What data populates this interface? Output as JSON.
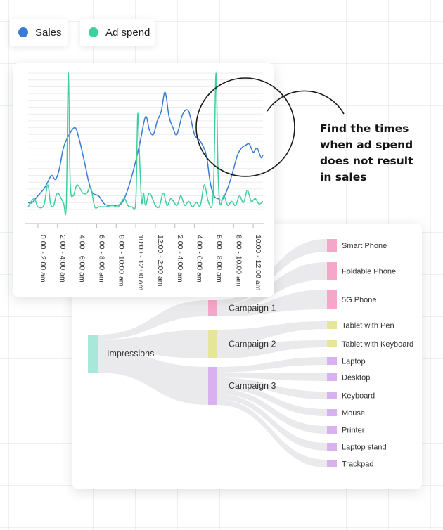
{
  "legend": [
    {
      "label": "Sales",
      "color": "#3a7bd5"
    },
    {
      "label": "Ad spend",
      "color": "#3ecf9a"
    }
  ],
  "callout_lines": [
    "Find the times",
    "when ad spend",
    "does not result",
    "in sales"
  ],
  "chart_data": [
    {
      "type": "line",
      "xlabel": "",
      "ylabel": "",
      "grid": true,
      "legend_position": "top-left",
      "x_tick_labels": [
        "0:00 - 2:00 am",
        "2:00 - 4:00 am",
        "4:00 - 6:00 am",
        "6:00 - 8:00 am",
        "8:00 - 10:00 am",
        "10:00 - 12:00 am",
        "12:00 - 2:00 am",
        "2:00 - 4:00 am",
        "4:00 - 6:00 am",
        "6:00 - 8:00 am",
        "8:00 - 10:00 am",
        "10:00 - 12:00 am"
      ],
      "xlim": [
        0,
        12
      ],
      "ylim": [
        0,
        100
      ],
      "series": [
        {
          "name": "Sales",
          "color": "#3a7bd5",
          "x": [
            0,
            0.2,
            0.5,
            0.8,
            1.0,
            1.2,
            1.4,
            1.6,
            1.8,
            2.1,
            2.4,
            2.6,
            2.8,
            2.95,
            3.1,
            3.3,
            3.6,
            3.9,
            4.2,
            4.5,
            4.8,
            5.1,
            5.4,
            5.7,
            6.0,
            6.2,
            6.4,
            6.6,
            6.8,
            7.0,
            7.2,
            7.4,
            7.6,
            7.9,
            8.2,
            8.5,
            8.8,
            9.1,
            9.3,
            9.5,
            9.7,
            9.9,
            10.1,
            10.3,
            10.5,
            10.7,
            10.9,
            11.1,
            11.3,
            11.5,
            11.7,
            11.9,
            12.0
          ],
          "y": [
            5,
            5,
            10,
            15,
            20,
            25,
            22,
            30,
            45,
            55,
            60,
            52,
            40,
            30,
            20,
            12,
            10,
            4,
            3,
            3,
            5,
            15,
            30,
            48,
            68,
            58,
            55,
            65,
            72,
            86,
            68,
            60,
            55,
            70,
            72,
            55,
            50,
            40,
            20,
            10,
            8,
            7,
            12,
            20,
            30,
            40,
            45,
            47,
            48,
            42,
            45,
            38,
            40
          ]
        },
        {
          "name": "Ad spend",
          "color": "#3ecf9a",
          "x": [
            0,
            0.3,
            0.5,
            0.8,
            1.0,
            1.15,
            1.3,
            1.5,
            1.8,
            1.95,
            2.05,
            2.15,
            2.3,
            2.5,
            2.8,
            3.0,
            3.2,
            3.4,
            3.6,
            3.8,
            4.0,
            4.3,
            4.6,
            4.9,
            5.1,
            5.3,
            5.5,
            5.6,
            5.7,
            5.8,
            5.9,
            6.0,
            6.2,
            6.5,
            6.7,
            6.9,
            7.1,
            7.3,
            7.6,
            7.8,
            8.0,
            8.2,
            8.4,
            8.6,
            8.8,
            9.0,
            9.2,
            9.4,
            9.5,
            9.6,
            9.7,
            9.8,
            10.0,
            10.2,
            10.4,
            10.6,
            10.8,
            11.0,
            11.2,
            11.4,
            11.6,
            11.8,
            12.0
          ],
          "y": [
            2,
            8,
            2,
            3,
            18,
            4,
            3,
            12,
            5,
            3,
            100,
            20,
            10,
            18,
            12,
            12,
            16,
            2,
            2,
            2,
            2,
            3,
            2,
            8,
            3,
            2,
            6,
            70,
            35,
            5,
            12,
            3,
            12,
            3,
            2,
            12,
            3,
            8,
            3,
            10,
            3,
            6,
            2,
            5,
            3,
            18,
            6,
            3,
            30,
            100,
            30,
            4,
            10,
            3,
            6,
            3,
            10,
            5,
            14,
            6,
            8,
            4,
            6
          ]
        }
      ]
    },
    {
      "type": "sankey",
      "sources": [
        {
          "label": "Impressions",
          "color": "#a8e8da"
        }
      ],
      "campaigns": [
        {
          "label": "Campaign 1",
          "color": "#f6a6c8"
        },
        {
          "label": "Campaign 2",
          "color": "#e6e69a"
        },
        {
          "label": "Campaign 3",
          "color": "#d7b2ef"
        }
      ],
      "products": [
        {
          "label": "Smart Phone",
          "campaign": 0
        },
        {
          "label": "Foldable Phone",
          "campaign": 0
        },
        {
          "label": "5G Phone",
          "campaign": 0
        },
        {
          "label": "Tablet with Pen",
          "campaign": 1
        },
        {
          "label": "Tablet with Keyboard",
          "campaign": 1
        },
        {
          "label": "Laptop",
          "campaign": 2
        },
        {
          "label": "Desktop",
          "campaign": 2
        },
        {
          "label": "Keyboard",
          "campaign": 2
        },
        {
          "label": "Mouse",
          "campaign": 2
        },
        {
          "label": "Printer",
          "campaign": 2
        },
        {
          "label": "Laptop stand",
          "campaign": 2
        },
        {
          "label": "Trackpad",
          "campaign": 2
        }
      ]
    }
  ]
}
